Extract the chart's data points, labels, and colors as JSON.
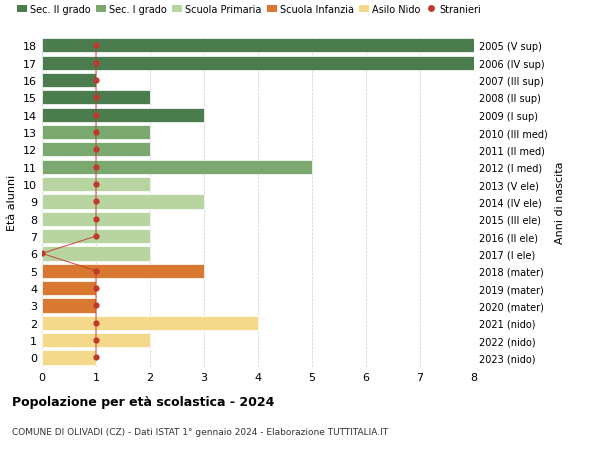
{
  "ages": [
    18,
    17,
    16,
    15,
    14,
    13,
    12,
    11,
    10,
    9,
    8,
    7,
    6,
    5,
    4,
    3,
    2,
    1,
    0
  ],
  "right_labels": [
    "2005 (V sup)",
    "2006 (IV sup)",
    "2007 (III sup)",
    "2008 (II sup)",
    "2009 (I sup)",
    "2010 (III med)",
    "2011 (II med)",
    "2012 (I med)",
    "2013 (V ele)",
    "2014 (IV ele)",
    "2015 (III ele)",
    "2016 (II ele)",
    "2017 (I ele)",
    "2018 (mater)",
    "2019 (mater)",
    "2020 (mater)",
    "2021 (nido)",
    "2022 (nido)",
    "2023 (nido)"
  ],
  "bar_values": [
    8,
    8,
    1,
    2,
    3,
    2,
    2,
    5,
    2,
    3,
    2,
    2,
    2,
    3,
    1,
    1,
    4,
    2,
    1
  ],
  "bar_colors": [
    "#4a7c4e",
    "#4a7c4e",
    "#4a7c4e",
    "#4a7c4e",
    "#4a7c4e",
    "#7aa86e",
    "#7aa86e",
    "#7aa86e",
    "#b8d4a0",
    "#b8d4a0",
    "#b8d4a0",
    "#b8d4a0",
    "#b8d4a0",
    "#d97931",
    "#d97931",
    "#d97931",
    "#f5d98b",
    "#f5d98b",
    "#f5d98b"
  ],
  "stranieri_values": [
    1,
    1,
    1,
    1,
    1,
    1,
    1,
    1,
    1,
    1,
    1,
    1,
    0,
    1,
    1,
    1,
    1,
    1,
    1
  ],
  "stranieri_line_segments": [
    [
      18,
      1
    ],
    [
      17,
      1
    ],
    [
      16,
      1
    ],
    [
      15,
      1
    ],
    [
      14,
      1
    ],
    [
      13,
      1
    ],
    [
      12,
      1
    ],
    [
      11,
      1
    ],
    [
      10,
      1
    ],
    [
      9,
      1
    ],
    [
      8,
      1
    ],
    [
      7,
      1
    ],
    [
      6,
      0
    ],
    [
      5,
      1
    ],
    [
      4,
      1
    ],
    [
      3,
      1
    ],
    [
      2,
      1
    ],
    [
      1,
      1
    ],
    [
      0,
      1
    ]
  ],
  "legend_labels": [
    "Sec. II grado",
    "Sec. I grado",
    "Scuola Primaria",
    "Scuola Infanzia",
    "Asilo Nido",
    "Stranieri"
  ],
  "legend_colors": [
    "#4a7c4e",
    "#7aa86e",
    "#b8d4a0",
    "#d97931",
    "#f5d98b",
    "#c0392b"
  ],
  "color_stranieri": "#c0392b",
  "ylabel_left": "Età alunni",
  "ylabel_right": "Anni di nascita",
  "title": "Popolazione per età scolastica - 2024",
  "subtitle": "COMUNE DI OLIVADI (CZ) - Dati ISTAT 1° gennaio 2024 - Elaborazione TUTTITALIA.IT",
  "xlim": [
    0,
    8
  ],
  "ylim_bottom": -0.55,
  "ylim_top": 18.55,
  "background_color": "#ffffff",
  "grid_color": "#cccccc"
}
